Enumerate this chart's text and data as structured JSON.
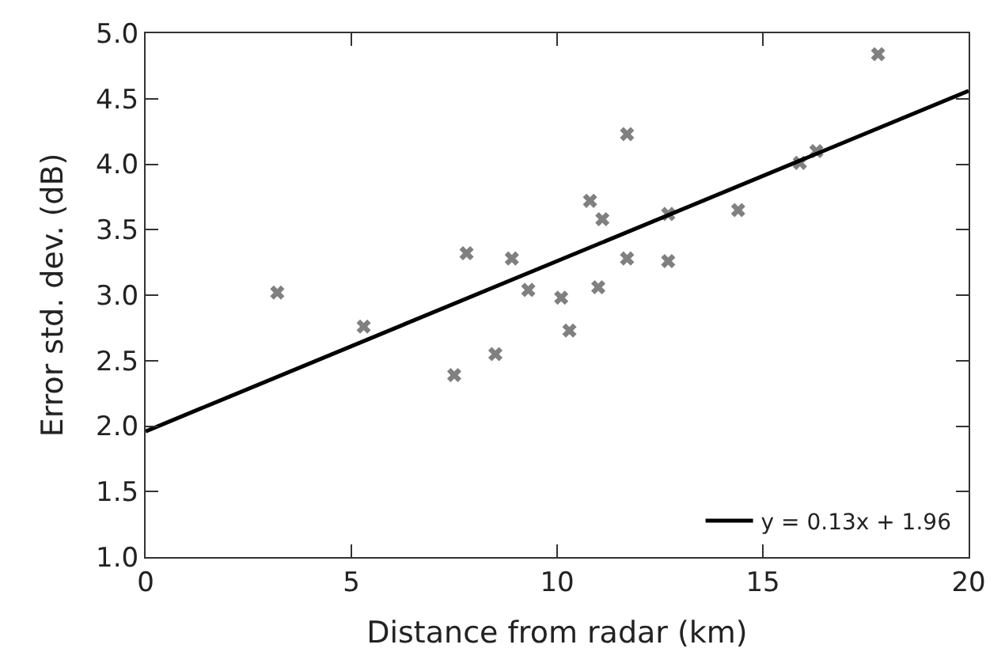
{
  "chart_data": {
    "type": "scatter",
    "xlabel": "Distance from radar (km)",
    "ylabel": "Error std. dev. (dB)",
    "xlim": [
      0,
      20
    ],
    "xticks": [
      0,
      5,
      10,
      15,
      20
    ],
    "ylim": [
      1.0,
      5.0
    ],
    "yticks": [
      {
        "value": 1.0,
        "label": "1.0"
      },
      {
        "value": 1.5,
        "label": "1.5"
      },
      {
        "value": 2.0,
        "label": "2.0"
      },
      {
        "value": 2.5,
        "label": "2.5"
      },
      {
        "value": 3.0,
        "label": "3.0"
      },
      {
        "value": 3.5,
        "label": "3.5"
      },
      {
        "value": 4.0,
        "label": "4.0"
      },
      {
        "value": 4.5,
        "label": "4.5"
      },
      {
        "value": 5.0,
        "label": "5.0"
      }
    ],
    "legend": "bottom right",
    "series": [
      {
        "marker": "cross",
        "color": "#808080",
        "x": [
          3.2,
          5.3,
          7.5,
          7.8,
          8.5,
          8.9,
          9.3,
          10.1,
          10.3,
          10.8,
          11.0,
          11.1,
          11.7,
          11.7,
          12.7,
          12.7,
          14.4,
          15.9,
          16.3,
          17.8
        ],
        "values": [
          3.02,
          2.76,
          2.39,
          3.32,
          2.55,
          3.28,
          3.04,
          2.98,
          2.73,
          3.72,
          3.06,
          3.58,
          4.23,
          3.28,
          3.62,
          3.26,
          3.65,
          4.01,
          4.1,
          4.84
        ]
      },
      {
        "type": "line",
        "marker": "none",
        "name": "y = 0.13x + 1.96",
        "color": "#000000",
        "line_style": "solid",
        "x": [
          0,
          20
        ],
        "values": [
          1.96,
          4.56
        ]
      }
    ]
  }
}
